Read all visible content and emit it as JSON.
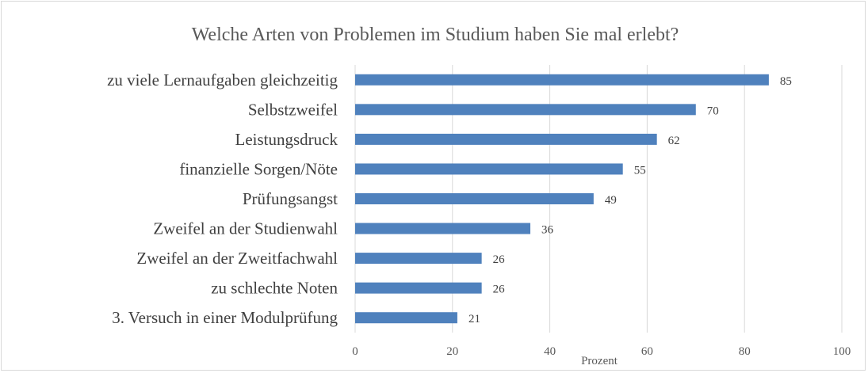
{
  "chart_data": {
    "type": "bar",
    "orientation": "horizontal",
    "title": "Welche Arten von Problemen im Studium haben Sie mal erlebt?",
    "xlabel": "Prozent",
    "ylabel": "",
    "categories": [
      "zu viele Lernaufgaben gleichzeitig",
      "Selbstzweifel",
      "Leistungsdruck",
      "finanzielle Sorgen/Nöte",
      "Prüfungsangst",
      "Zweifel an der Studienwahl",
      "Zweifel an der Zweitfachwahl",
      "zu schlechte Noten",
      "3. Versuch in einer Modulprüfung"
    ],
    "values": [
      85,
      70,
      62,
      55,
      49,
      36,
      26,
      26,
      21
    ],
    "xlim": [
      0,
      100
    ],
    "xticks": [
      0,
      20,
      40,
      60,
      80,
      100
    ],
    "grid": true,
    "legend": "none",
    "bar_color": "#4f81bd"
  }
}
